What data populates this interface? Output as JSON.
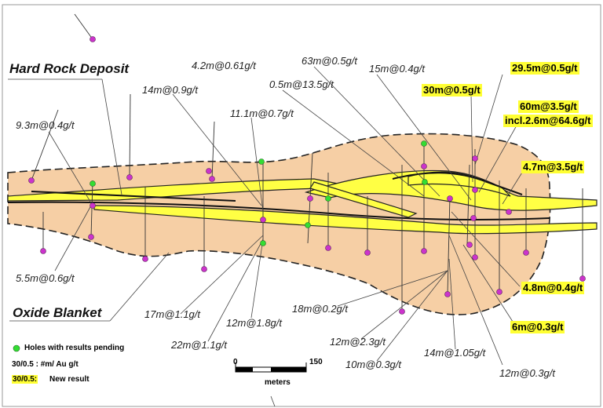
{
  "labels": {
    "deposit": "Hard Rock Deposit",
    "oxide": "Oxide Blanket"
  },
  "intercepts": [
    "9.3m@0.4g/t",
    "5.5m@0.6g/t",
    "14m@0.9g/t",
    "4.2m@0.61g/t",
    "11.1m@0.7g/t",
    "0.5m@13.5g/t",
    "63m@0.5g/t",
    "15m@0.4g/t",
    "17m@1.1g/t",
    "22m@1.1g/t",
    "12m@1.8g/t",
    "18m@0.2g/t",
    "12m@2.3g/t",
    "10m@0.3g/t",
    "14m@1.05g/t",
    "12m@0.3g/t"
  ],
  "new_results": [
    "29.5m@0.5g/t",
    "30m@0.5g/t",
    "60m@3.5g/t",
    "incl.2.6m@64.6g/t",
    "4.7m@3.5g/t",
    "4.8m@0.4g/t",
    "6m@0.3g/t"
  ],
  "legend": {
    "pending": "Holes with results pending",
    "key": "30/0.5 : #m/ Au g/t",
    "new_key": "30/0.5:",
    "new_label": "New result"
  },
  "scale": {
    "start": 0,
    "end": 150,
    "unit": "meters"
  }
}
